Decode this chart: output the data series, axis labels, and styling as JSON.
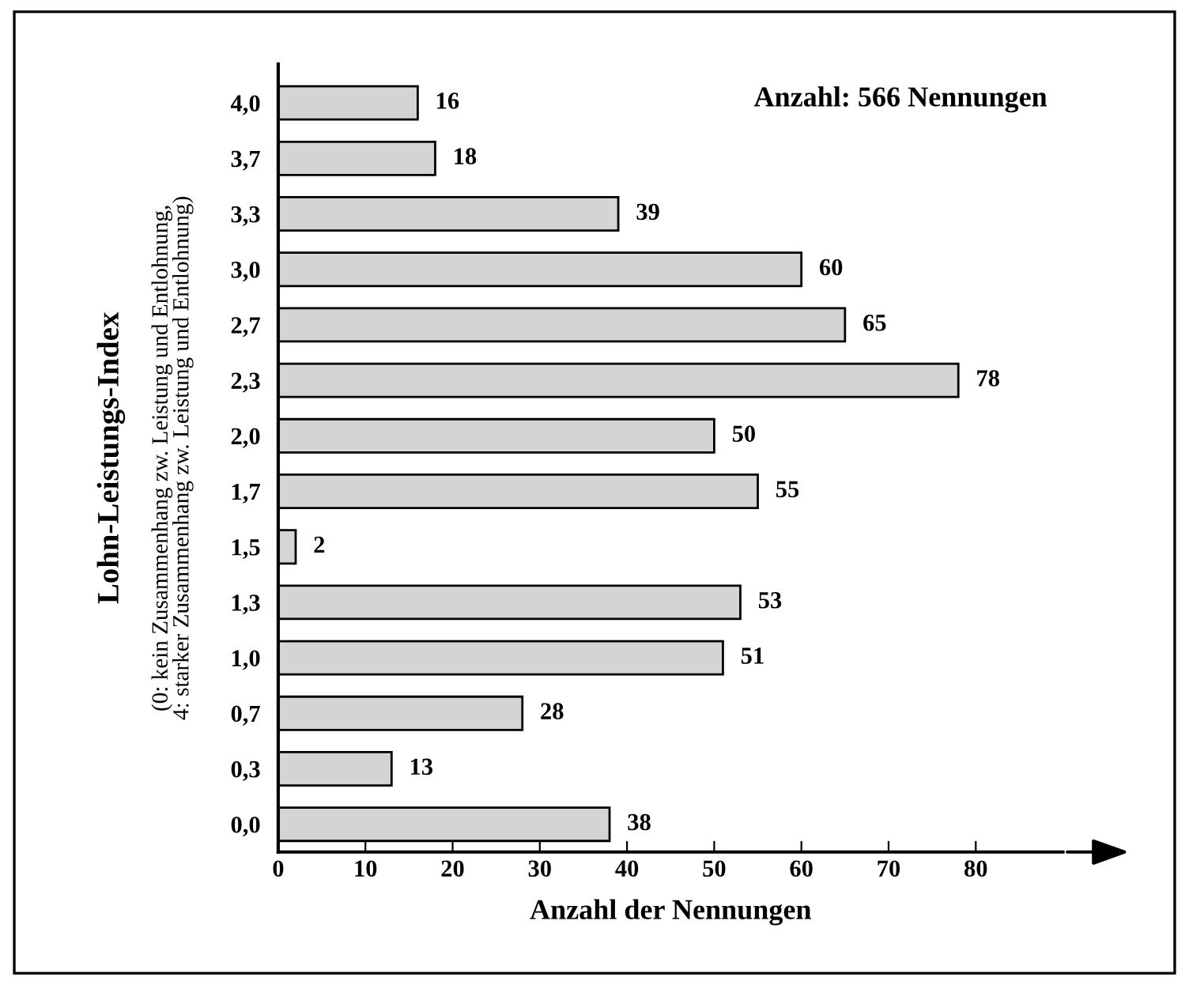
{
  "chart_data": {
    "type": "bar",
    "orientation": "horizontal",
    "categories": [
      "4,0",
      "3,7",
      "3,3",
      "3,0",
      "2,7",
      "2,3",
      "2,0",
      "1,7",
      "1,5",
      "1,3",
      "1,0",
      "0,7",
      "0,3",
      "0,0"
    ],
    "values": [
      16,
      18,
      39,
      60,
      65,
      78,
      50,
      55,
      2,
      53,
      51,
      28,
      13,
      38
    ],
    "color": "#d4d4d4",
    "data_labels": true,
    "xlim": [
      0,
      90
    ],
    "xticks": [
      0,
      10,
      20,
      30,
      40,
      50,
      60,
      70,
      80
    ],
    "xlabel": "Anzahl der Nennungen",
    "ylabel": "Lohn-Leistungs-Index",
    "annotations": [
      "(0: kein Zusammenhang zw. Leistung und Entlohnung,\n4: starker Zusammenhang zw. Leistung und Entlohnung)",
      "Anzahl: 566 Nennungen"
    ],
    "grid": false,
    "legend": false
  }
}
